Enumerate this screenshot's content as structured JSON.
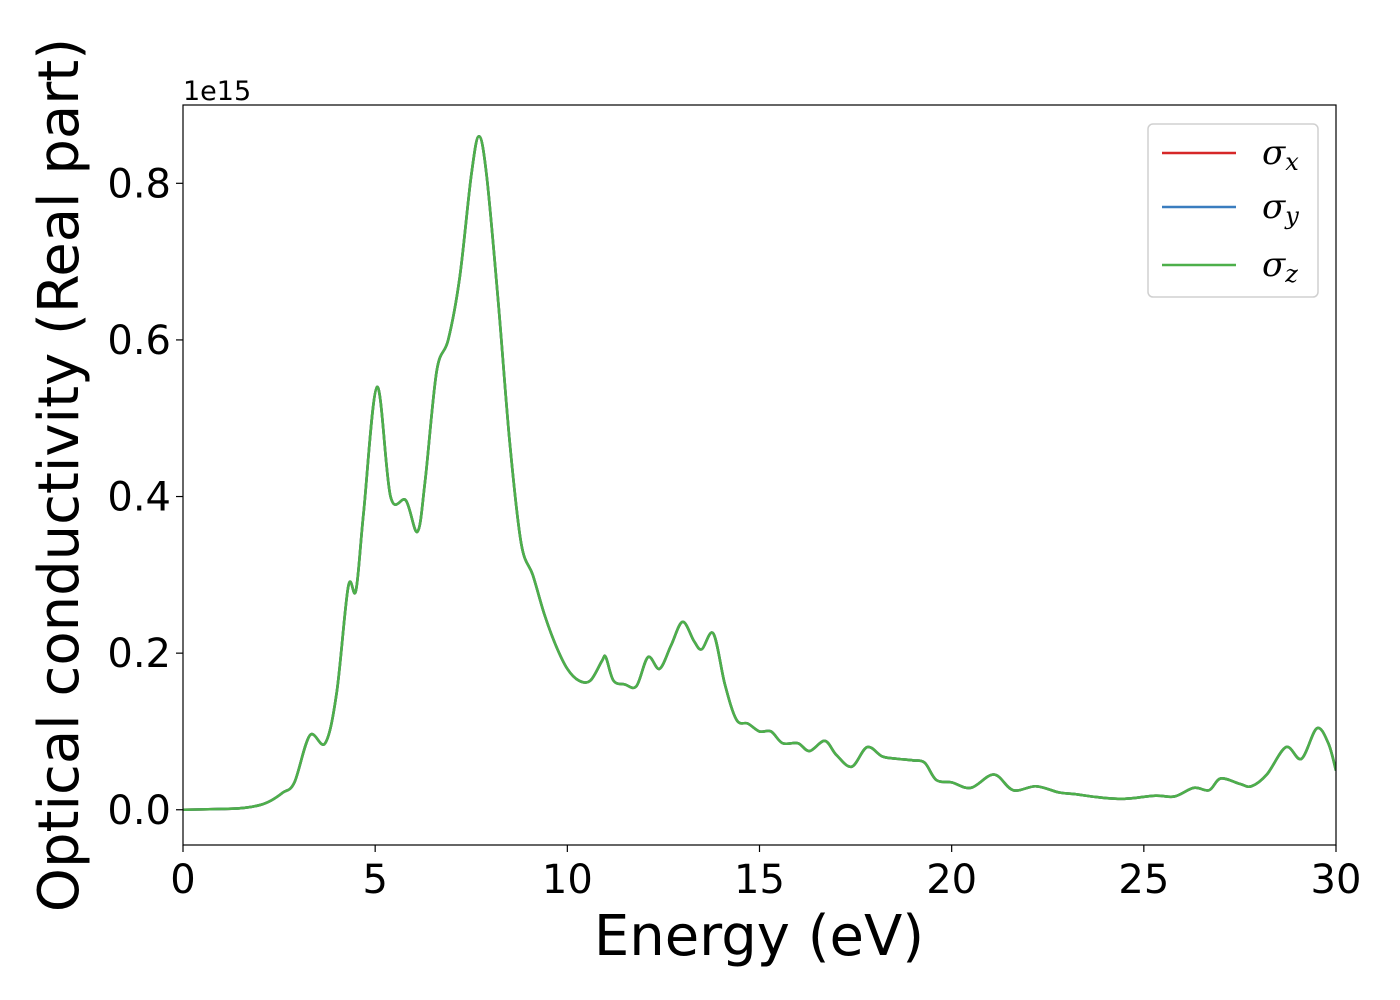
{
  "chart_data": {
    "type": "line",
    "xlabel": "Energy (eV)",
    "ylabel": "Optical conductivity (Real part)",
    "offset_text": "1e15",
    "xlim": [
      0,
      30
    ],
    "ylim": [
      -0.045,
      0.9
    ],
    "xticks": [
      0,
      5,
      10,
      15,
      20,
      25,
      30
    ],
    "xtick_labels": [
      "0",
      "5",
      "10",
      "15",
      "20",
      "25",
      "30"
    ],
    "yticks": [
      0.0,
      0.2,
      0.4,
      0.6,
      0.8
    ],
    "ytick_labels": [
      "0.0",
      "0.2",
      "0.4",
      "0.6",
      "0.8"
    ],
    "grid": false,
    "legend_position": "top-right",
    "colors": {
      "sigma_x": "#d62728",
      "sigma_y": "#3a7dbf",
      "sigma_z": "#4daf4a"
    },
    "legend": [
      {
        "base": "σ",
        "sub": "x",
        "color": "#d62728"
      },
      {
        "base": "σ",
        "sub": "y",
        "color": "#3a7dbf"
      },
      {
        "base": "σ",
        "sub": "z",
        "color": "#4daf4a"
      }
    ],
    "x": [
      0,
      1,
      1.5,
      2,
      2.3,
      2.6,
      2.9,
      3.3,
      3.7,
      4.0,
      4.3,
      4.5,
      4.7,
      5.05,
      5.4,
      5.8,
      6.1,
      6.3,
      6.6,
      6.9,
      7.2,
      7.5,
      7.7,
      7.9,
      8.2,
      8.5,
      8.8,
      9.1,
      9.4,
      9.7,
      10.0,
      10.3,
      10.6,
      10.9,
      11.0,
      11.2,
      11.5,
      11.8,
      12.1,
      12.4,
      12.7,
      13.0,
      13.3,
      13.5,
      13.8,
      14.1,
      14.4,
      14.7,
      15.0,
      15.3,
      15.6,
      16.0,
      16.3,
      16.7,
      17.0,
      17.4,
      17.8,
      18.2,
      18.6,
      19.0,
      19.3,
      19.6,
      20.0,
      20.5,
      21.1,
      21.6,
      22.2,
      22.8,
      23.2,
      23.8,
      24.5,
      25.3,
      25.8,
      26.3,
      26.7,
      27.0,
      27.5,
      27.8,
      28.2,
      28.7,
      29.1,
      29.5,
      29.8,
      30.0
    ],
    "series": [
      {
        "name": "σx",
        "color": "#d62728",
        "values": [
          0.0,
          0.001,
          0.002,
          0.006,
          0.012,
          0.022,
          0.035,
          0.095,
          0.085,
          0.15,
          0.285,
          0.28,
          0.38,
          0.54,
          0.4,
          0.395,
          0.355,
          0.42,
          0.56,
          0.6,
          0.68,
          0.81,
          0.86,
          0.81,
          0.65,
          0.47,
          0.34,
          0.3,
          0.25,
          0.21,
          0.18,
          0.165,
          0.165,
          0.19,
          0.195,
          0.165,
          0.16,
          0.158,
          0.195,
          0.18,
          0.21,
          0.24,
          0.215,
          0.205,
          0.225,
          0.16,
          0.115,
          0.11,
          0.1,
          0.1,
          0.085,
          0.085,
          0.075,
          0.088,
          0.07,
          0.055,
          0.08,
          0.068,
          0.065,
          0.063,
          0.06,
          0.038,
          0.035,
          0.028,
          0.045,
          0.025,
          0.03,
          0.022,
          0.02,
          0.016,
          0.014,
          0.018,
          0.017,
          0.028,
          0.025,
          0.04,
          0.033,
          0.03,
          0.045,
          0.08,
          0.065,
          0.104,
          0.085,
          0.05
        ]
      },
      {
        "name": "σy",
        "color": "#3a7dbf",
        "values": [
          0.0,
          0.001,
          0.002,
          0.006,
          0.012,
          0.022,
          0.035,
          0.095,
          0.085,
          0.15,
          0.285,
          0.28,
          0.38,
          0.54,
          0.4,
          0.395,
          0.355,
          0.42,
          0.56,
          0.6,
          0.68,
          0.81,
          0.86,
          0.81,
          0.65,
          0.47,
          0.34,
          0.3,
          0.25,
          0.21,
          0.18,
          0.165,
          0.165,
          0.19,
          0.195,
          0.165,
          0.16,
          0.158,
          0.195,
          0.18,
          0.21,
          0.24,
          0.215,
          0.205,
          0.225,
          0.16,
          0.115,
          0.11,
          0.1,
          0.1,
          0.085,
          0.085,
          0.075,
          0.088,
          0.07,
          0.055,
          0.08,
          0.068,
          0.065,
          0.063,
          0.06,
          0.038,
          0.035,
          0.028,
          0.045,
          0.025,
          0.03,
          0.022,
          0.02,
          0.016,
          0.014,
          0.018,
          0.017,
          0.028,
          0.025,
          0.04,
          0.033,
          0.03,
          0.045,
          0.08,
          0.065,
          0.104,
          0.085,
          0.05
        ]
      },
      {
        "name": "σz",
        "color": "#4daf4a",
        "values": [
          0.0,
          0.001,
          0.002,
          0.006,
          0.012,
          0.022,
          0.035,
          0.095,
          0.085,
          0.15,
          0.285,
          0.28,
          0.38,
          0.54,
          0.4,
          0.395,
          0.355,
          0.42,
          0.56,
          0.6,
          0.68,
          0.81,
          0.86,
          0.81,
          0.65,
          0.47,
          0.34,
          0.3,
          0.25,
          0.21,
          0.18,
          0.165,
          0.165,
          0.19,
          0.195,
          0.165,
          0.16,
          0.158,
          0.195,
          0.18,
          0.21,
          0.24,
          0.215,
          0.205,
          0.225,
          0.16,
          0.115,
          0.11,
          0.1,
          0.1,
          0.085,
          0.085,
          0.075,
          0.088,
          0.07,
          0.055,
          0.08,
          0.068,
          0.065,
          0.063,
          0.06,
          0.038,
          0.035,
          0.028,
          0.045,
          0.025,
          0.03,
          0.022,
          0.02,
          0.016,
          0.014,
          0.018,
          0.017,
          0.028,
          0.025,
          0.04,
          0.033,
          0.03,
          0.045,
          0.08,
          0.065,
          0.104,
          0.085,
          0.05
        ]
      }
    ]
  }
}
